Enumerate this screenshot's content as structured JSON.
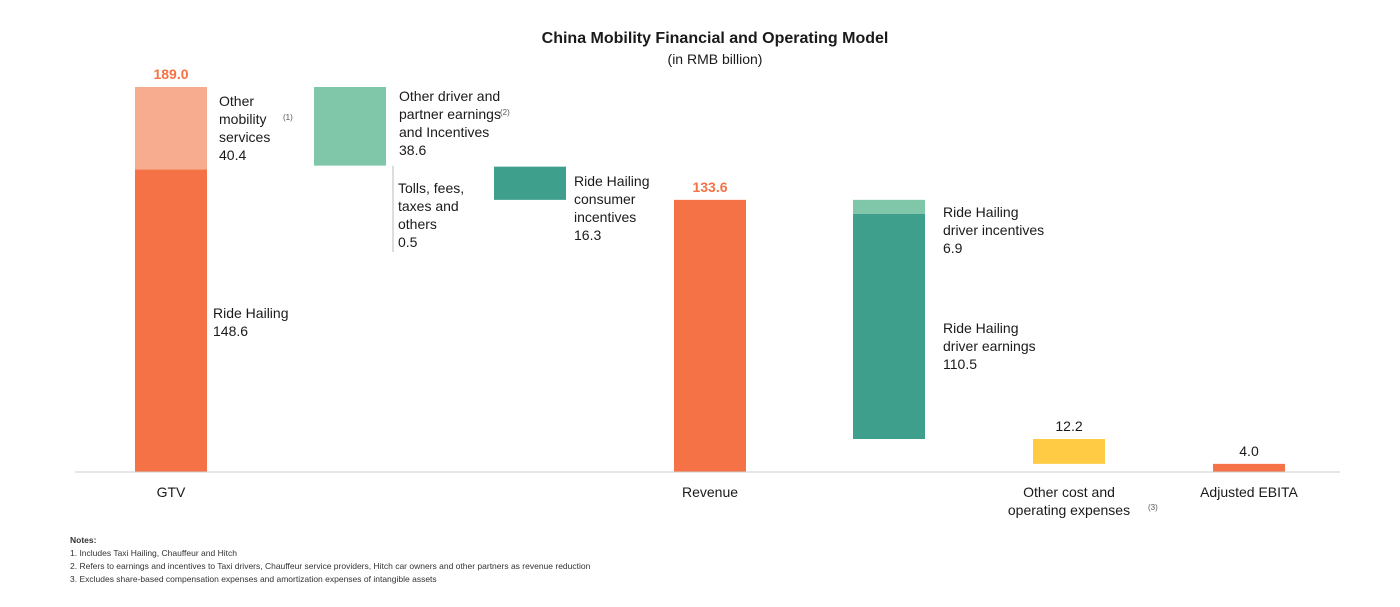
{
  "chart_data": {
    "type": "bar",
    "subtype": "waterfall",
    "title": "China Mobility Financial and Operating Model",
    "subtitle": "(in RMB billion)",
    "ylim": [
      0,
      189.0
    ],
    "grid": false,
    "legend": "none",
    "steps": [
      {
        "id": "gtv",
        "category": "GTV",
        "kind": "total",
        "total_label": "189.0",
        "segments": [
          {
            "name": "Ride Hailing",
            "label_lines": [
              "Ride Hailing",
              "148.6"
            ],
            "start": 0,
            "end": 148.6,
            "color": "#F47245"
          },
          {
            "name": "Other mobility services",
            "label_lines": [
              "Other",
              "mobility",
              "services",
              "40.4"
            ],
            "note_ref": "(1)",
            "start": 148.6,
            "end": 189.0,
            "color": "#F8AC8F"
          }
        ]
      },
      {
        "id": "other-driver",
        "category": "",
        "kind": "decrease",
        "segments": [
          {
            "name": "Other driver and partner earnings and Incentives",
            "label_lines": [
              "Other driver and",
              "partner earnings",
              "and Incentives",
              "38.6"
            ],
            "note_ref": "(2)",
            "start": 150.4,
            "end": 189.0,
            "color": "#7FC7A8"
          }
        ]
      },
      {
        "id": "tolls",
        "category": "",
        "kind": "decrease",
        "segments": [
          {
            "name": "Tolls, fees, taxes and others",
            "label_lines": [
              "Tolls, fees,",
              "taxes and",
              "others",
              "0.5"
            ],
            "start": 149.9,
            "end": 150.4,
            "color": "#7FC7A8"
          }
        ]
      },
      {
        "id": "consumer-incentives",
        "category": "",
        "kind": "decrease",
        "segments": [
          {
            "name": "Ride Hailing consumer incentives",
            "label_lines": [
              "Ride Hailing",
              "consumer",
              "incentives",
              "16.3"
            ],
            "start": 133.6,
            "end": 149.9,
            "color": "#3E9F8C"
          }
        ]
      },
      {
        "id": "revenue",
        "category": "Revenue",
        "kind": "total",
        "total_label": "133.6",
        "segments": [
          {
            "name": "Revenue",
            "start": 0,
            "end": 133.6,
            "color": "#F47245"
          }
        ]
      },
      {
        "id": "driver",
        "category": "",
        "kind": "decrease",
        "segments": [
          {
            "name": "Ride Hailing driver incentives",
            "label_lines": [
              "Ride Hailing",
              "driver incentives",
              "6.9"
            ],
            "start": 126.7,
            "end": 133.6,
            "color": "#7FC7A8"
          },
          {
            "name": "Ride Hailing driver earnings",
            "label_lines": [
              "Ride Hailing",
              "driver earnings",
              "110.5"
            ],
            "start": 16.2,
            "end": 126.7,
            "color": "#3E9F8C"
          }
        ]
      },
      {
        "id": "other-cost",
        "category": "Other cost and operating expenses",
        "category_lines": [
          "Other cost and",
          "operating expenses"
        ],
        "category_note_ref": "(3)",
        "kind": "decrease",
        "total_label": "12.2",
        "segments": [
          {
            "name": "Other cost and operating expenses",
            "start": 4.0,
            "end": 16.2,
            "color": "#FFCB45"
          }
        ]
      },
      {
        "id": "ebita",
        "category": "Adjusted EBITA",
        "kind": "total",
        "total_label": "4.0",
        "segments": [
          {
            "name": "Adjusted EBITA",
            "start": 0,
            "end": 4.0,
            "color": "#F47245"
          }
        ]
      }
    ]
  },
  "colors": {
    "total_label": "#F47245",
    "text": "#1a1a1a",
    "axis": "#cccccc"
  },
  "notes": {
    "heading": "Notes:",
    "items": [
      "1. Includes Taxi Hailing, Chauffeur and Hitch",
      "2. Refers to earnings and incentives to Taxi drivers, Chauffeur service providers, Hitch car owners and other partners as revenue reduction",
      "3. Excludes share-based compensation expenses and amortization expenses of intangible assets"
    ]
  }
}
